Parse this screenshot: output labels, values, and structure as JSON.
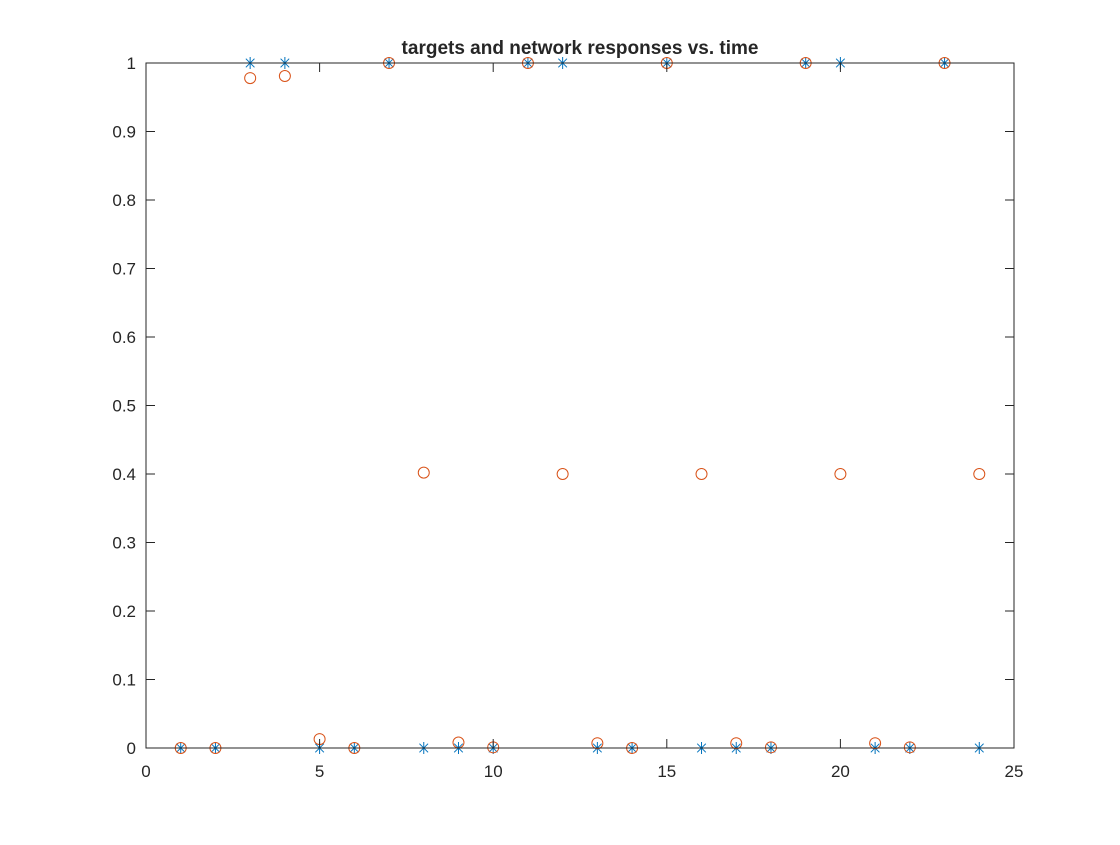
{
  "chart_data": {
    "type": "scatter",
    "title": "targets and network responses vs. time",
    "xlabel": "",
    "ylabel": "",
    "xlim": [
      0,
      25
    ],
    "ylim": [
      0,
      1
    ],
    "xticks": [
      0,
      5,
      10,
      15,
      20,
      25
    ],
    "xtick_labels": [
      "0",
      "5",
      "10",
      "15",
      "20",
      "25"
    ],
    "yticks": [
      0,
      0.1,
      0.2,
      0.3,
      0.4,
      0.5,
      0.6,
      0.7,
      0.8,
      0.9,
      1
    ],
    "ytick_labels": [
      "0",
      "0.1",
      "0.2",
      "0.3",
      "0.4",
      "0.5",
      "0.6",
      "0.7",
      "0.8",
      "0.9",
      "1"
    ],
    "grid": false,
    "series": [
      {
        "marker": "star",
        "color": "#0072bd",
        "x": [
          1,
          2,
          3,
          4,
          5,
          6,
          7,
          8,
          9,
          10,
          11,
          12,
          13,
          14,
          15,
          16,
          17,
          18,
          19,
          20,
          21,
          22,
          23,
          24
        ],
        "y": [
          0,
          0,
          1,
          1,
          0,
          0,
          1,
          0,
          0,
          0,
          1,
          1,
          0,
          0,
          1,
          0,
          0,
          0,
          1,
          1,
          0,
          0,
          1,
          0
        ]
      },
      {
        "marker": "circle",
        "color": "#d95319",
        "x": [
          1,
          2,
          3,
          4,
          5,
          6,
          7,
          8,
          9,
          10,
          11,
          12,
          13,
          14,
          15,
          16,
          17,
          18,
          19,
          20,
          21,
          22,
          23,
          24
        ],
        "y": [
          0,
          0,
          0.978,
          0.981,
          0.013,
          0,
          1,
          0.402,
          0.008,
          0.001,
          1,
          0.4,
          0.007,
          0,
          1,
          0.4,
          0.007,
          0.001,
          1,
          0.4,
          0.007,
          0.001,
          1,
          0.4
        ]
      }
    ]
  }
}
